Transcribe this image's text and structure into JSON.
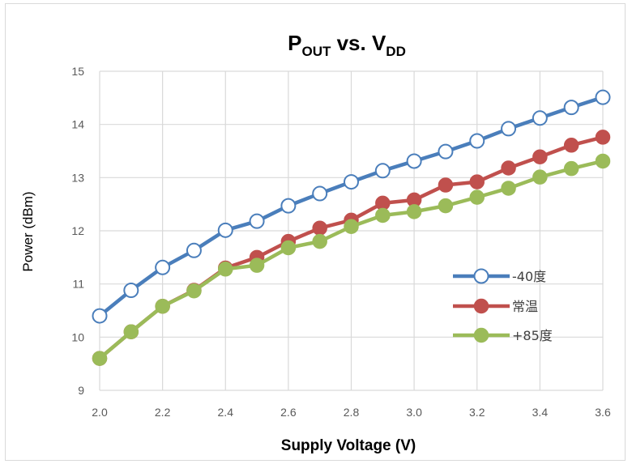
{
  "chart_data": {
    "type": "line",
    "title": "P",
    "title_sub1": "OUT",
    "title_mid": " vs. V",
    "title_sub2": "DD",
    "xlabel": "Supply Voltage (V)",
    "ylabel": "Power (dBm)",
    "xlim": [
      2.0,
      3.6
    ],
    "ylim": [
      9,
      15
    ],
    "x_ticks": [
      "2.0",
      "2.2",
      "2.4",
      "2.6",
      "2.8",
      "3.0",
      "3.2",
      "3.4",
      "3.6"
    ],
    "y_ticks": [
      "9",
      "10",
      "11",
      "12",
      "13",
      "14",
      "15"
    ],
    "grid": true,
    "legend_position": "right",
    "x": [
      2.0,
      2.1,
      2.2,
      2.3,
      2.4,
      2.5,
      2.6,
      2.7,
      2.8,
      2.9,
      3.0,
      3.1,
      3.2,
      3.3,
      3.4,
      3.5,
      3.6
    ],
    "series": [
      {
        "name": "-40度",
        "color": "#4a7ebb",
        "marker": "open-circle",
        "values": [
          10.4,
          10.88,
          11.31,
          11.63,
          12.01,
          12.18,
          12.47,
          12.7,
          12.92,
          13.13,
          13.31,
          13.49,
          13.69,
          13.92,
          14.12,
          14.32,
          14.51
        ]
      },
      {
        "name": "常温",
        "color": "#c0504d",
        "marker": "filled-circle",
        "values": [
          9.6,
          10.1,
          10.58,
          10.88,
          11.3,
          11.5,
          11.8,
          12.05,
          12.2,
          12.52,
          12.58,
          12.86,
          12.92,
          13.18,
          13.39,
          13.61,
          13.76
        ]
      },
      {
        "name": "+85度",
        "color": "#9bbb59",
        "marker": "filled-circle",
        "values": [
          9.6,
          10.1,
          10.58,
          10.87,
          11.28,
          11.35,
          11.68,
          11.8,
          12.08,
          12.29,
          12.36,
          12.47,
          12.63,
          12.8,
          13.01,
          13.17,
          13.31
        ]
      }
    ]
  }
}
